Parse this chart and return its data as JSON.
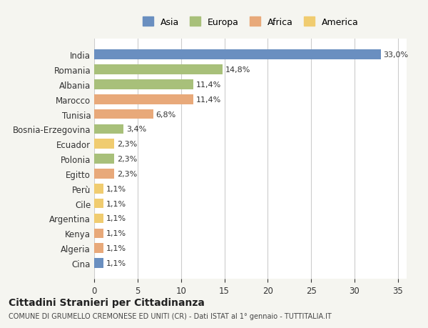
{
  "countries": [
    "India",
    "Romania",
    "Albania",
    "Marocco",
    "Tunisia",
    "Bosnia-Erzegovina",
    "Ecuador",
    "Polonia",
    "Egitto",
    "Perù",
    "Cile",
    "Argentina",
    "Kenya",
    "Algeria",
    "Cina"
  ],
  "values": [
    33.0,
    14.8,
    11.4,
    11.4,
    6.8,
    3.4,
    2.3,
    2.3,
    2.3,
    1.1,
    1.1,
    1.1,
    1.1,
    1.1,
    1.1
  ],
  "labels": [
    "33,0%",
    "14,8%",
    "11,4%",
    "11,4%",
    "6,8%",
    "3,4%",
    "2,3%",
    "2,3%",
    "2,3%",
    "1,1%",
    "1,1%",
    "1,1%",
    "1,1%",
    "1,1%",
    "1,1%"
  ],
  "colors": [
    "#6a8fc0",
    "#a8c07a",
    "#a8c07a",
    "#e8a97a",
    "#e8a97a",
    "#a8c07a",
    "#f0cc70",
    "#a8c07a",
    "#e8a97a",
    "#f0cc70",
    "#f0cc70",
    "#f0cc70",
    "#e8a97a",
    "#e8a97a",
    "#6a8fc0"
  ],
  "legend_labels": [
    "Asia",
    "Europa",
    "Africa",
    "America"
  ],
  "legend_colors": [
    "#6a8fc0",
    "#a8c07a",
    "#e8a97a",
    "#f0cc70"
  ],
  "title": "Cittadini Stranieri per Cittadinanza",
  "subtitle": "COMUNE DI GRUMELLO CREMONESE ED UNITI (CR) - Dati ISTAT al 1° gennaio - TUTTITALIA.IT",
  "xlim": [
    0,
    36
  ],
  "xticks": [
    0,
    5,
    10,
    15,
    20,
    25,
    30,
    35
  ],
  "bg_color": "#f5f5f0",
  "plot_bg_color": "#ffffff"
}
